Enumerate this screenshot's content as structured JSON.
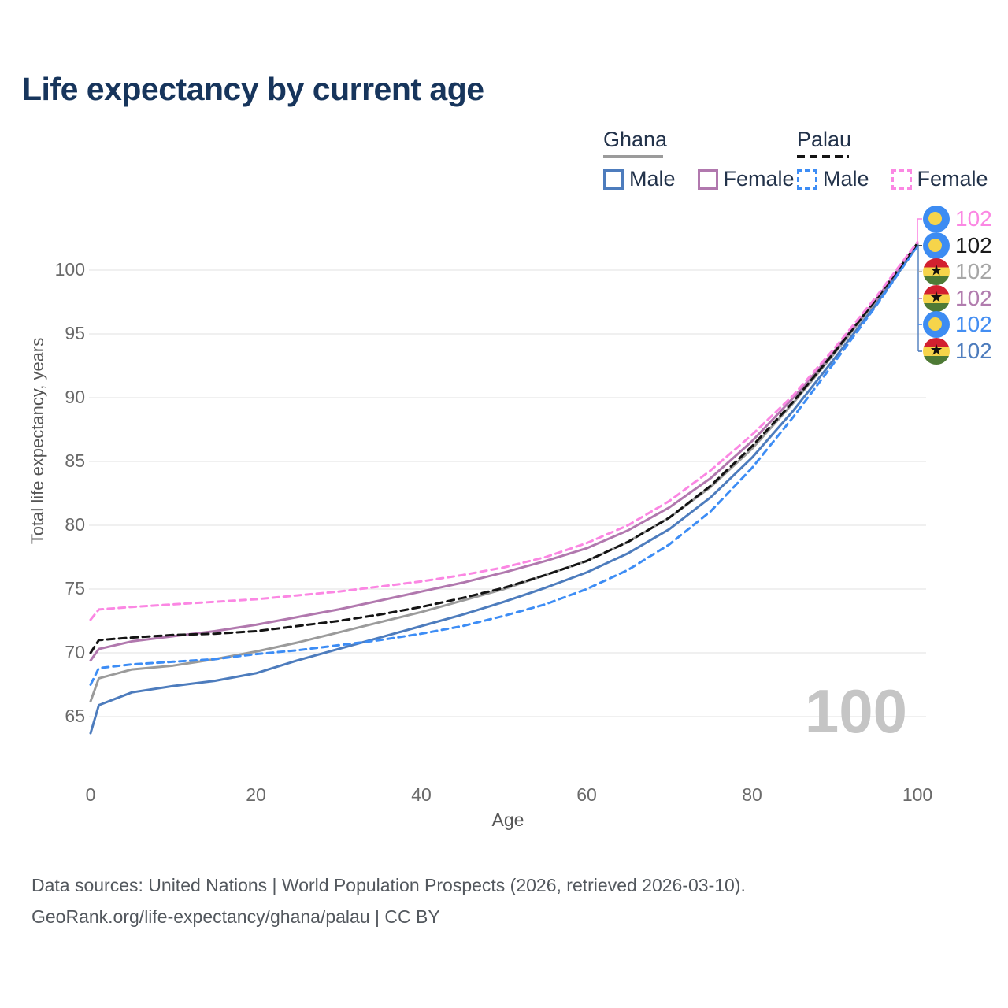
{
  "title": "Life expectancy by current age",
  "watermark": "100",
  "legend": {
    "groups": [
      {
        "label": "Ghana",
        "underline_color": "#9b9b9b",
        "items": [
          {
            "label": "Male",
            "color": "#4d7cbd"
          },
          {
            "label": "Female",
            "color": "#b178ae"
          }
        ]
      },
      {
        "label": "Palau",
        "underline_color": "#141414",
        "items": [
          {
            "label": "Male",
            "color": "#3d8df5"
          },
          {
            "label": "Female",
            "color": "#fb87e3"
          }
        ]
      }
    ]
  },
  "chart_data": {
    "type": "line",
    "title": "Life expectancy by current age",
    "xlabel": "Age",
    "ylabel": "Total life expectancy, years",
    "x_ticks": [
      0,
      20,
      40,
      60,
      80,
      100
    ],
    "y_ticks": [
      65,
      70,
      75,
      80,
      85,
      90,
      95,
      100
    ],
    "xlim": [
      0,
      100
    ],
    "ylim": [
      63,
      103
    ],
    "grid": true,
    "legend_position": "top-right",
    "x": [
      0,
      1,
      5,
      10,
      15,
      20,
      25,
      30,
      35,
      40,
      45,
      50,
      55,
      60,
      65,
      70,
      75,
      80,
      85,
      90,
      95,
      100
    ],
    "series": [
      {
        "name": "Ghana",
        "country": "Ghana",
        "color": "#9b9b9b",
        "dash": false,
        "values": [
          66.2,
          68.0,
          68.7,
          69.0,
          69.5,
          70.1,
          70.8,
          71.6,
          72.4,
          73.2,
          74.1,
          75.0,
          76.1,
          77.2,
          78.7,
          80.6,
          83.0,
          86.0,
          89.6,
          93.5,
          97.6,
          102.0
        ]
      },
      {
        "name": "Ghana Female",
        "country": "Ghana",
        "color": "#b178ae",
        "dash": false,
        "values": [
          69.4,
          70.3,
          70.9,
          71.3,
          71.7,
          72.2,
          72.8,
          73.4,
          74.1,
          74.8,
          75.5,
          76.3,
          77.2,
          78.2,
          79.6,
          81.4,
          83.7,
          86.6,
          90.0,
          93.7,
          97.7,
          102.1
        ]
      },
      {
        "name": "Ghana Male",
        "country": "Ghana",
        "color": "#4d7cbd",
        "dash": false,
        "values": [
          63.7,
          65.9,
          66.9,
          67.4,
          67.8,
          68.4,
          69.4,
          70.3,
          71.2,
          72.1,
          73.0,
          74.0,
          75.1,
          76.3,
          77.8,
          79.7,
          82.2,
          85.3,
          89.0,
          93.1,
          97.3,
          101.9
        ]
      },
      {
        "name": "Palau Male",
        "country": "Palau",
        "color": "#3d8df5",
        "dash": true,
        "values": [
          67.5,
          68.8,
          69.1,
          69.3,
          69.5,
          69.9,
          70.2,
          70.6,
          71.0,
          71.5,
          72.1,
          72.9,
          73.8,
          75.0,
          76.5,
          78.5,
          81.1,
          84.5,
          88.5,
          92.8,
          97.2,
          101.9
        ]
      },
      {
        "name": "Palau",
        "country": "Palau",
        "color": "#141414",
        "dash": true,
        "values": [
          70.0,
          71.0,
          71.2,
          71.4,
          71.5,
          71.7,
          72.1,
          72.5,
          73.0,
          73.6,
          74.3,
          75.1,
          76.1,
          77.2,
          78.7,
          80.6,
          83.1,
          86.2,
          89.7,
          93.6,
          97.7,
          102.1
        ]
      },
      {
        "name": "Palau Female",
        "country": "Palau",
        "color": "#fb87e3",
        "dash": true,
        "values": [
          72.6,
          73.4,
          73.6,
          73.8,
          74.0,
          74.2,
          74.5,
          74.8,
          75.2,
          75.6,
          76.1,
          76.7,
          77.5,
          78.6,
          80.0,
          81.9,
          84.3,
          87.1,
          90.2,
          93.9,
          97.9,
          102.2
        ]
      }
    ],
    "end_labels": [
      {
        "value": "102",
        "series": "Palau Female",
        "flag": "palau",
        "color": "#fb87e3"
      },
      {
        "value": "102",
        "series": "Palau",
        "flag": "palau",
        "color": "#1a1a1a"
      },
      {
        "value": "102",
        "series": "Ghana",
        "flag": "ghana",
        "color": "#a6a6a6"
      },
      {
        "value": "102",
        "series": "Ghana Female",
        "flag": "ghana",
        "color": "#b17cae"
      },
      {
        "value": "102",
        "series": "Palau Male",
        "flag": "palau",
        "color": "#448ef2"
      },
      {
        "value": "102",
        "series": "Ghana Male",
        "flag": "ghana",
        "color": "#4d7cbd"
      }
    ],
    "grid_color": "#ececec"
  },
  "footer": {
    "line1": "Data sources: United Nations | World Population Prospects (2026, retrieved 2026-03-10).",
    "line2": "GeoRank.org/life-expectancy/ghana/palau | CC BY"
  }
}
